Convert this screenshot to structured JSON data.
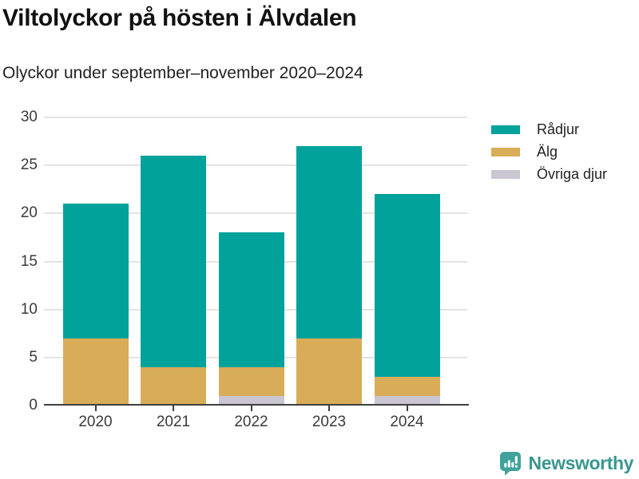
{
  "header": {
    "title": "Viltolyckor på hösten i Älvdalen",
    "subtitle": "Olyckor under september–november 2020–2024"
  },
  "chart_data": {
    "type": "bar",
    "stacked": true,
    "title": "Viltolyckor på hösten i Älvdalen",
    "subtitle": "Olyckor under september–november 2020–2024",
    "categories": [
      "2020",
      "2021",
      "2022",
      "2023",
      "2024"
    ],
    "series": [
      {
        "name": "Rådjur",
        "color": "#00a29b",
        "values": [
          14,
          22,
          14,
          20,
          19
        ]
      },
      {
        "name": "Älg",
        "color": "#d9ac57",
        "values": [
          7,
          4,
          3,
          7,
          2
        ]
      },
      {
        "name": "Övriga djur",
        "color": "#c9c6d2",
        "values": [
          0,
          0,
          1,
          0,
          1
        ]
      }
    ],
    "totals": [
      21,
      26,
      18,
      27,
      22
    ],
    "xlabel": "",
    "ylabel": "",
    "ylim": [
      0,
      30
    ],
    "yticks": [
      0,
      5,
      10,
      15,
      20,
      25,
      30
    ],
    "grid": true,
    "legend_position": "right"
  },
  "footer": {
    "brand": "Newsworthy",
    "brand_color": "#3a968f",
    "icon": "speech-bubble-bar-chart-icon"
  }
}
